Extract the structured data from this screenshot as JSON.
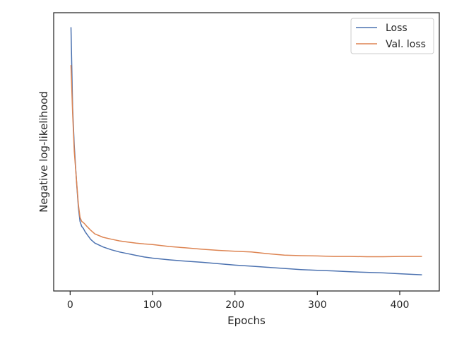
{
  "chart_data": {
    "type": "line",
    "title": "",
    "xlabel": "Epochs",
    "ylabel": "Negative log-likelihood",
    "xlim": [
      -20,
      448
    ],
    "ylim": [
      0,
      100
    ],
    "x_ticks": [
      0,
      100,
      200,
      300,
      400
    ],
    "y_ticks_shown": false,
    "grid": false,
    "legend_position": "top-right",
    "series": [
      {
        "name": "Loss",
        "color": "#4c72b0",
        "x": [
          1,
          3,
          5,
          8,
          10,
          12,
          14,
          16,
          18,
          20,
          25,
          30,
          40,
          50,
          60,
          70,
          80,
          90,
          100,
          120,
          140,
          160,
          180,
          200,
          220,
          240,
          260,
          280,
          300,
          320,
          340,
          360,
          380,
          400,
          427
        ],
        "y": [
          94.8,
          66.0,
          52.0,
          38.0,
          30.0,
          25.0,
          23.2,
          22.5,
          21.4,
          20.5,
          18.5,
          17.2,
          15.8,
          14.8,
          14.0,
          13.4,
          12.8,
          12.2,
          11.8,
          11.2,
          10.7,
          10.3,
          9.8,
          9.3,
          8.9,
          8.5,
          8.1,
          7.7,
          7.4,
          7.2,
          6.9,
          6.7,
          6.5,
          6.2,
          5.8
        ]
      },
      {
        "name": "Val. loss",
        "color": "#dd8452",
        "x": [
          1,
          3,
          5,
          8,
          10,
          12,
          14,
          16,
          18,
          20,
          25,
          30,
          40,
          50,
          60,
          70,
          80,
          90,
          100,
          120,
          140,
          160,
          180,
          200,
          220,
          240,
          260,
          280,
          300,
          320,
          340,
          360,
          380,
          400,
          427
        ],
        "y": [
          81.2,
          64.0,
          50.0,
          38.5,
          31.0,
          26.5,
          25.0,
          24.6,
          24.0,
          23.3,
          21.8,
          20.5,
          19.3,
          18.6,
          18.0,
          17.6,
          17.2,
          16.9,
          16.7,
          16.0,
          15.5,
          15.0,
          14.6,
          14.3,
          14.0,
          13.4,
          12.9,
          12.7,
          12.6,
          12.4,
          12.4,
          12.3,
          12.3,
          12.4,
          12.4
        ]
      }
    ]
  }
}
